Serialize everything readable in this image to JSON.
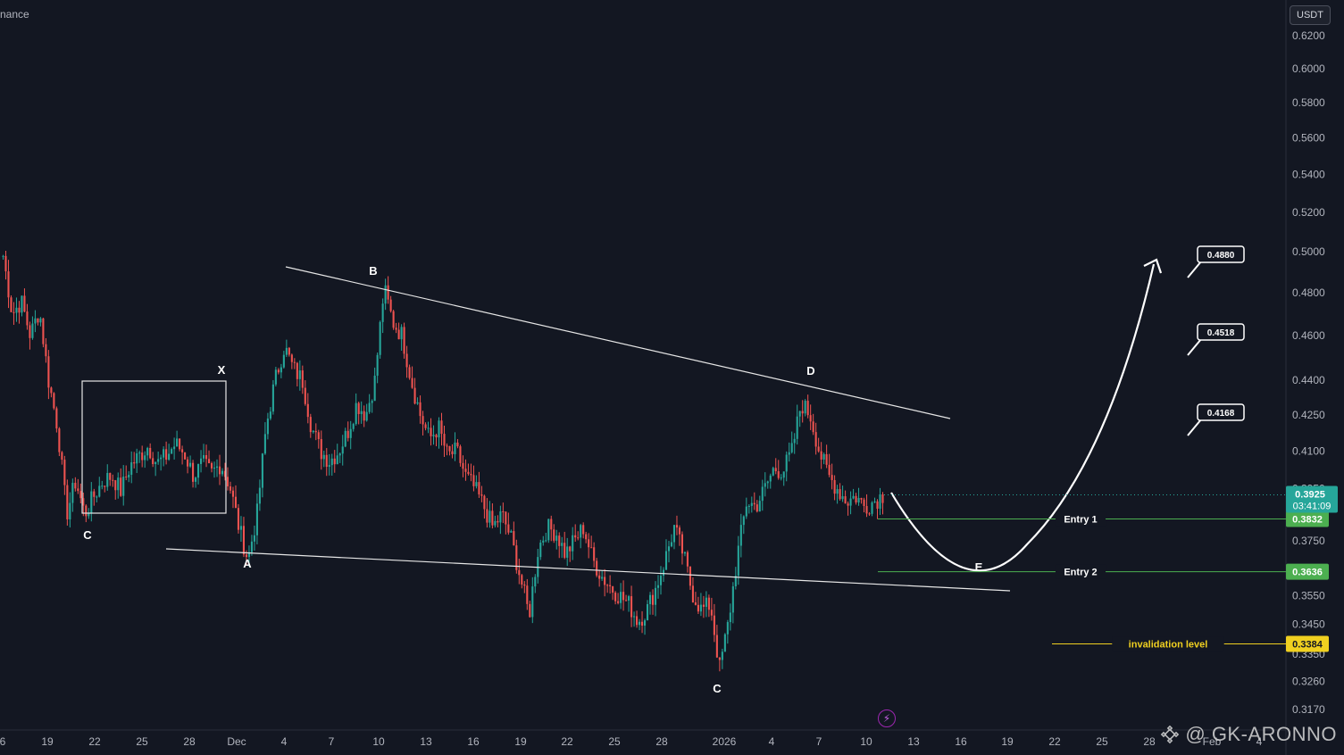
{
  "source_label": "nance",
  "currency": "USDT",
  "watermark": "@ GK-ARONNO",
  "colors": {
    "background": "#131722",
    "up": "#26a69a",
    "down": "#ef5350",
    "text": "#d1d4dc",
    "entry": "#4caf50",
    "invalidation": "#f0d020",
    "current": "#26a69a"
  },
  "chart_data": {
    "type": "candlestick",
    "y_scale": "log",
    "ylim": [
      0.312,
      0.632
    ],
    "y_ticks": [
      "0.6200",
      "0.6000",
      "0.5800",
      "0.5600",
      "0.5400",
      "0.5200",
      "0.5000",
      "0.4800",
      "0.4600",
      "0.4400",
      "0.4250",
      "0.4100",
      "0.3950",
      "0.3850",
      "0.3750",
      "0.3650",
      "0.3550",
      "0.3450",
      "0.3350",
      "0.3260",
      "0.3170"
    ],
    "x_ticks": [
      "6",
      "19",
      "22",
      "25",
      "28",
      "Dec",
      "4",
      "7",
      "10",
      "13",
      "16",
      "19",
      "22",
      "25",
      "28",
      "2026",
      "4",
      "7",
      "10",
      "13",
      "16",
      "19",
      "22",
      "25",
      "28",
      "Feb",
      "4"
    ],
    "price_path": [
      0.498,
      0.47,
      0.476,
      0.46,
      0.472,
      0.44,
      0.42,
      0.385,
      0.398,
      0.385,
      0.392,
      0.398,
      0.4,
      0.394,
      0.404,
      0.408,
      0.412,
      0.405,
      0.408,
      0.413,
      0.409,
      0.4,
      0.405,
      0.401,
      0.405,
      0.396,
      0.38,
      0.368,
      0.385,
      0.42,
      0.44,
      0.455,
      0.445,
      0.44,
      0.42,
      0.41,
      0.406,
      0.41,
      0.418,
      0.43,
      0.425,
      0.44,
      0.482,
      0.466,
      0.46,
      0.44,
      0.425,
      0.415,
      0.42,
      0.408,
      0.41,
      0.4,
      0.395,
      0.388,
      0.38,
      0.385,
      0.376,
      0.362,
      0.348,
      0.372,
      0.38,
      0.378,
      0.37,
      0.375,
      0.38,
      0.368,
      0.362,
      0.358,
      0.355,
      0.352,
      0.346,
      0.35,
      0.358,
      0.368,
      0.38,
      0.37,
      0.356,
      0.35,
      0.352,
      0.33,
      0.346,
      0.37,
      0.39,
      0.388,
      0.395,
      0.403,
      0.402,
      0.41,
      0.43,
      0.425,
      0.41,
      0.4,
      0.395,
      0.39,
      0.392,
      0.388,
      0.39,
      0.3925
    ],
    "current_price": "0.3925",
    "countdown": "03:41:09",
    "levels": [
      {
        "label": "Entry 1",
        "price": 0.3832,
        "tag": "0.3832",
        "kind": "entry"
      },
      {
        "label": "Entry 2",
        "price": 0.3636,
        "tag": "0.3636",
        "kind": "entry"
      },
      {
        "label": "invalidation level",
        "price": 0.3384,
        "tag": "0.3384",
        "kind": "invalidation"
      }
    ],
    "targets": [
      {
        "label": "0.4880",
        "price": 0.488
      },
      {
        "label": "0.4518",
        "price": 0.4518
      },
      {
        "label": "0.4168",
        "price": 0.4168
      }
    ],
    "wave_labels": [
      "X",
      "C",
      "A",
      "B",
      "D",
      "C",
      "E"
    ]
  }
}
